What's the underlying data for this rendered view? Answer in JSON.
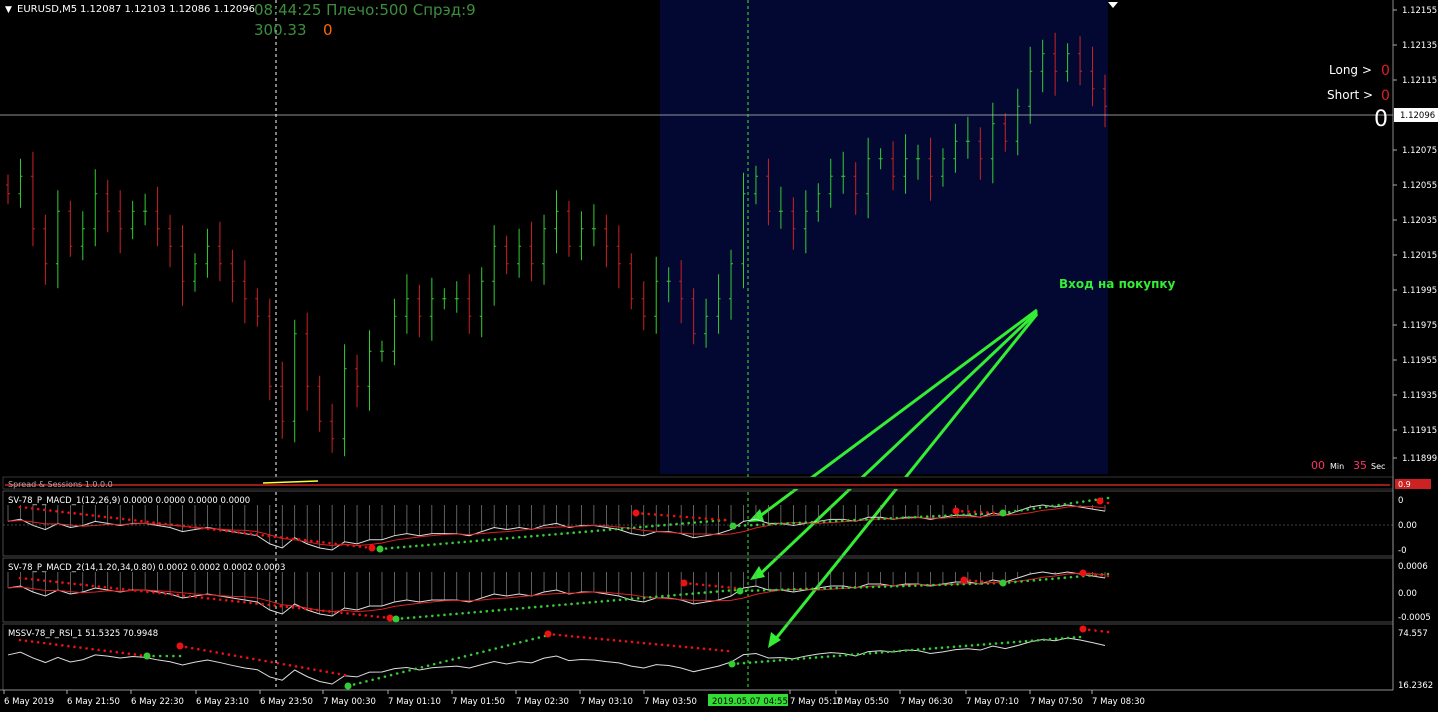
{
  "colors": {
    "background": "#000000",
    "session_highlight": "#030833",
    "bull_candle": "#33cc33",
    "bear_candle": "#cc2222",
    "grid_line": "#c0c0c0",
    "crosshair": "#ffffff",
    "crosshair_green": "#33ee33",
    "dot_red": "#ee1111",
    "dot_green": "#33cc33",
    "indicator_line": "#dddddd",
    "signal_line": "#dd2222",
    "annotation_text": "#33ee33",
    "info_green": "#3d8f3d",
    "info_orange": "#ff6600",
    "axis_text": "#ffffff",
    "timer_red": "#ff3366",
    "long_short_zero": "#dd2222"
  },
  "header": {
    "symbol": "EURUSD,M5",
    "ohlc": "1.12087 1.12103 1.12086 1.12096",
    "clock_info": "08:44:25 Плечо:500 Спрэд:9",
    "info_value": "300.33",
    "info_zero": "0"
  },
  "right_labels": {
    "long": "Long >",
    "long_value": "0",
    "short": "Short >",
    "short_value": "0",
    "big_zero": "0"
  },
  "timer": {
    "min_value": "00",
    "min_label": "Min",
    "sec_value": "35",
    "sec_label": "Sec"
  },
  "annotation": {
    "text": "Вход на покупку"
  },
  "sessions_panel": {
    "label": "Spread & Sessions 1.0.0.0",
    "value_badge": "0.9"
  },
  "indicators": {
    "macd1": {
      "label": "SV-78_P_MACD_1(12,26,9) 0.0000 0.0000 0.0000 0.0000",
      "axis": [
        "0",
        "0.00",
        "-0"
      ]
    },
    "macd2": {
      "label": "SV-78_P_MACD_2(14,1.20,34,0.80) 0.0002 0.0002 0.0002 0.0003",
      "axis": [
        "0.0006",
        "0.00",
        "-0.0005"
      ]
    },
    "rsi": {
      "label": "MSSV-78_P_RSI_1 51.5325 70.9948",
      "axis": [
        "74.557",
        "16.2362"
      ]
    }
  },
  "chart_data": {
    "type": "candlestick",
    "price_axis_labels": [
      "1.12155",
      "1.12135",
      "1.12115",
      "1.12096",
      "1.12075",
      "1.12055",
      "1.12035",
      "1.12015",
      "1.11995",
      "1.11975",
      "1.11955",
      "1.11935",
      "1.11915",
      "1.11899"
    ],
    "current_price": 1.12096,
    "time_axis_labels": [
      "6 May 2019",
      "6 May 21:50",
      "6 May 22:30",
      "6 May 23:10",
      "6 May 23:50",
      "7 May 00:30",
      "7 May 01:10",
      "7 May 01:50",
      "7 May 02:30",
      "7 May 03:10",
      "7 May 03:50",
      "7 May 05:10",
      "7 May 05:50",
      "7 May 06:30",
      "7 May 07:10",
      "7 May 07:50",
      "7 May 08:30"
    ],
    "cursor_time_label": "2019.05.07 04:55",
    "close_series": [
      1.1205,
      1.1206,
      1.1203,
      1.1201,
      1.1204,
      1.1202,
      1.1203,
      1.1205,
      1.1204,
      1.1203,
      1.1204,
      1.1204,
      1.1203,
      1.1202,
      1.12,
      1.1201,
      1.1202,
      1.1201,
      1.12,
      1.1199,
      1.1198,
      1.1194,
      1.1192,
      1.1197,
      1.1194,
      1.1192,
      1.1191,
      1.1195,
      1.1194,
      1.1196,
      1.1196,
      1.1198,
      1.1199,
      1.1198,
      1.1199,
      1.1199,
      1.1199,
      1.1198,
      1.12,
      1.1202,
      1.1201,
      1.1202,
      1.1201,
      1.1203,
      1.1204,
      1.1202,
      1.1203,
      1.1203,
      1.1202,
      1.1201,
      1.1199,
      1.1198,
      1.12,
      1.12,
      1.1199,
      1.1197,
      1.1198,
      1.1199,
      1.1201,
      1.1205,
      1.1206,
      1.1204,
      1.1204,
      1.1203,
      1.1204,
      1.1205,
      1.1206,
      1.1206,
      1.1205,
      1.1207,
      1.1207,
      1.1206,
      1.1207,
      1.1207,
      1.1206,
      1.1207,
      1.1208,
      1.1208,
      1.1207,
      1.1209,
      1.1208,
      1.121,
      1.1212,
      1.1213,
      1.1212,
      1.1213,
      1.1212,
      1.1211,
      1.121
    ]
  }
}
